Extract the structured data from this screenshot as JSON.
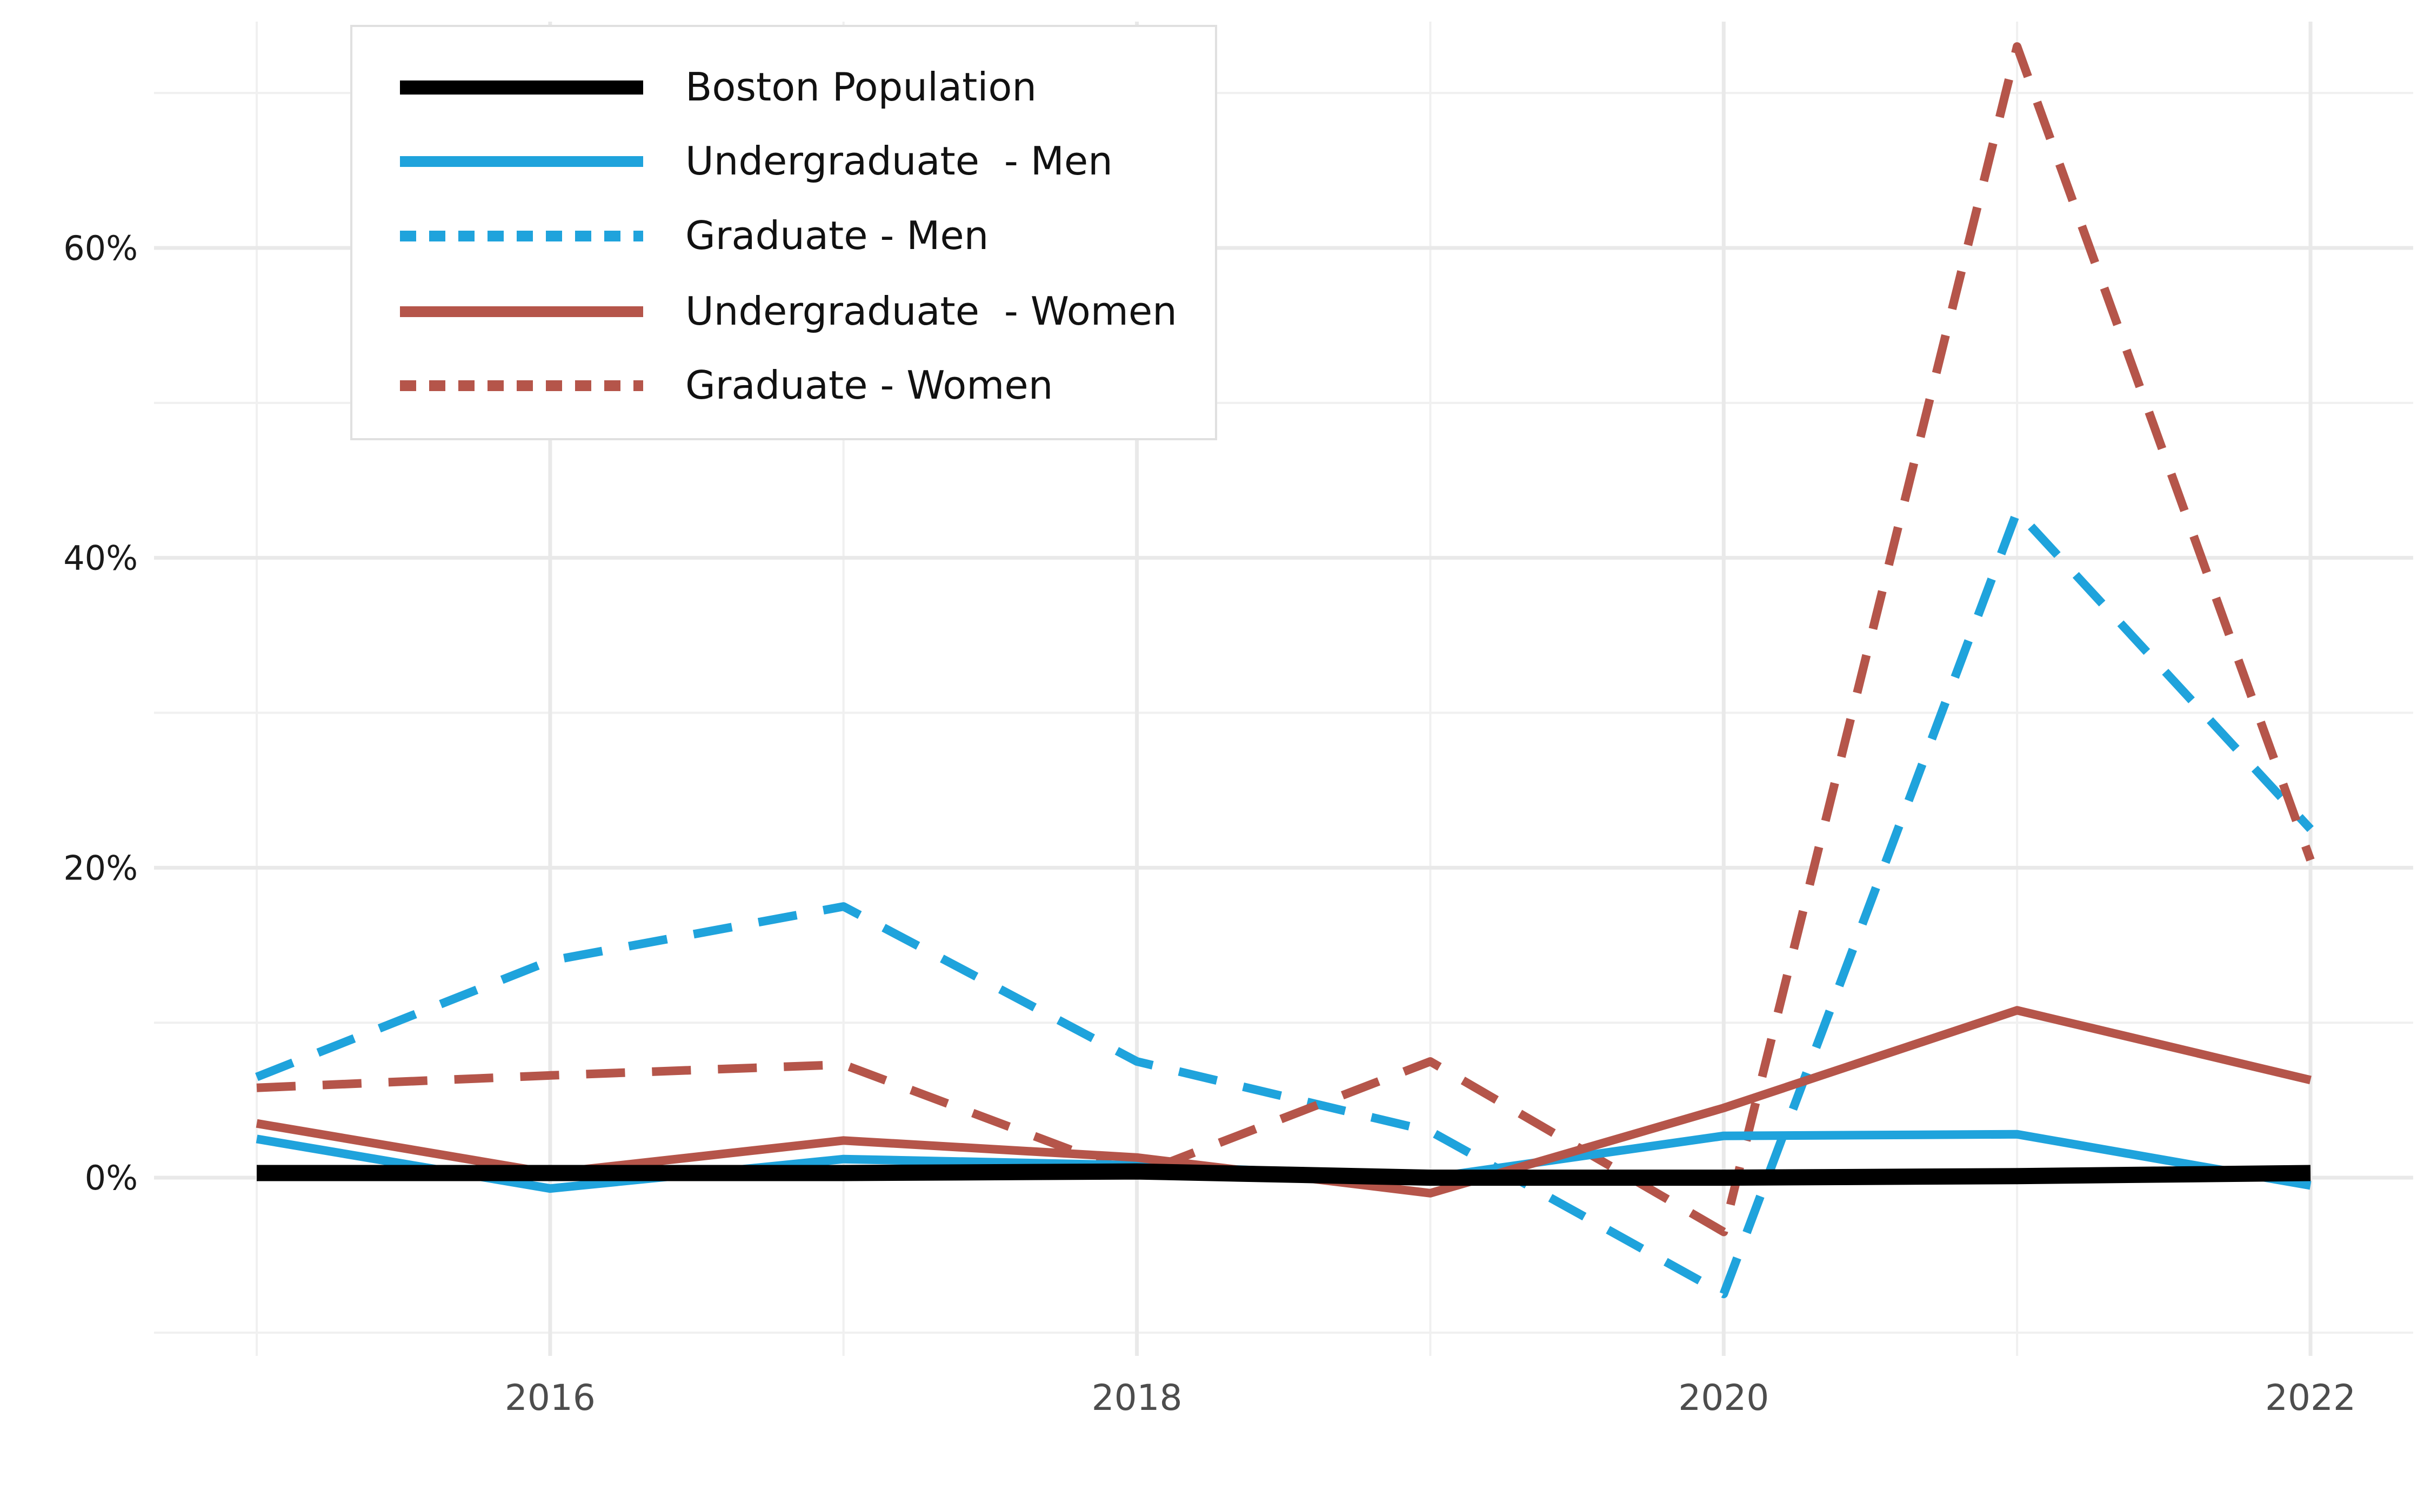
{
  "chart_data": {
    "type": "line",
    "title": "",
    "xlabel": "",
    "ylabel": "",
    "x": [
      2015,
      2016,
      2017,
      2018,
      2019,
      2020,
      2021,
      2022
    ],
    "xlim": [
      2014.65,
      2022.35
    ],
    "ylim": [
      -11.5,
      76
    ],
    "x_ticks": [
      2016,
      2018,
      2020,
      2022
    ],
    "x_tick_labels": [
      "2016",
      "2018",
      "2020",
      "2022"
    ],
    "x_minor_ticks": [
      2015,
      2017,
      2019,
      2021
    ],
    "y_ticks": [
      0,
      20,
      40,
      60
    ],
    "y_tick_labels": [
      "0%",
      "20%",
      "40%",
      "60%"
    ],
    "y_minor_ticks": [
      -10,
      10,
      30,
      50,
      70
    ],
    "grid": true,
    "legend_position": "top-left",
    "series": [
      {
        "name": "Boston Population",
        "color": "#000000",
        "dash": "solid",
        "values": [
          0.3,
          0.3,
          0.3,
          0.4,
          0.0,
          0.0,
          0.1,
          0.3
        ]
      },
      {
        "name": "Undergraduate  - Men",
        "color": "#1fa3dc",
        "dash": "solid",
        "values": [
          2.5,
          -0.7,
          1.2,
          0.8,
          0.0,
          2.7,
          2.8,
          -0.5
        ]
      },
      {
        "name": "Graduate - Men",
        "color": "#1fa3dc",
        "dash": "dashed",
        "values": [
          6.5,
          14.0,
          17.5,
          7.5,
          3.0,
          -7.5,
          43.0,
          22.5
        ]
      },
      {
        "name": "Undergraduate  - Women",
        "color": "#b5554a",
        "dash": "solid",
        "values": [
          3.5,
          0.3,
          2.4,
          1.3,
          -1.0,
          4.5,
          10.8,
          6.3
        ]
      },
      {
        "name": "Graduate - Women",
        "color": "#b5554a",
        "dash": "dashed",
        "values": [
          5.8,
          6.6,
          7.3,
          0.2,
          7.5,
          -3.5,
          73.0,
          20.5
        ]
      }
    ]
  }
}
